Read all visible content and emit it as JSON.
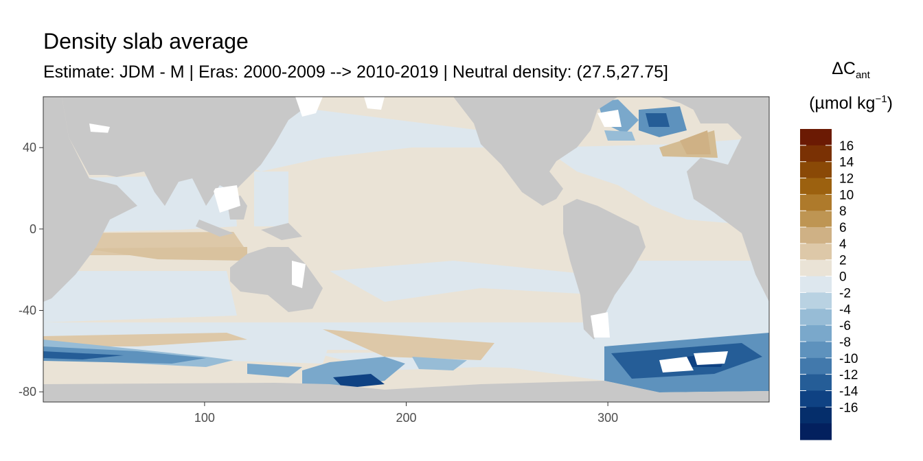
{
  "chart_data": {
    "type": "heatmap",
    "title": "Density slab average",
    "subtitle": "Estimate: JDM - M | Eras: 2000-2009 --> 2010-2019 | Neutral density: (27.5,27.75]",
    "legend": {
      "title_main": "ΔC",
      "title_sub": "ant",
      "unit_main": "(µmol kg",
      "unit_sup": "−1",
      "unit_close": ")",
      "position": "right",
      "labels": [
        "16",
        "14",
        "12",
        "10",
        "8",
        "6",
        "4",
        "2",
        "0",
        "-2",
        "-4",
        "-6",
        "-8",
        "-10",
        "-12",
        "-14",
        "-16"
      ],
      "colors": [
        "#6B1A03",
        "#7A3104",
        "#8A4906",
        "#9C610F",
        "#AE7A2B",
        "#BE9553",
        "#CFB185",
        "#DDC8A8",
        "#EAE3D6",
        "#DDE7EE",
        "#B9D2E2",
        "#97BCD6",
        "#7AA8CB",
        "#5E92BD",
        "#4279AC",
        "#255D97",
        "#0F4283",
        "#052E6B",
        "#03205E"
      ]
    },
    "x_axis": {
      "ticks": [
        100,
        200,
        300
      ],
      "range": [
        20,
        380
      ]
    },
    "y_axis": {
      "ticks": [
        40,
        0,
        -40,
        -80
      ],
      "range": [
        -85,
        65
      ]
    },
    "colors": {
      "land": "#C8C8C8",
      "no_data": "#FFFFFF",
      "panel_border": "#333333"
    }
  }
}
